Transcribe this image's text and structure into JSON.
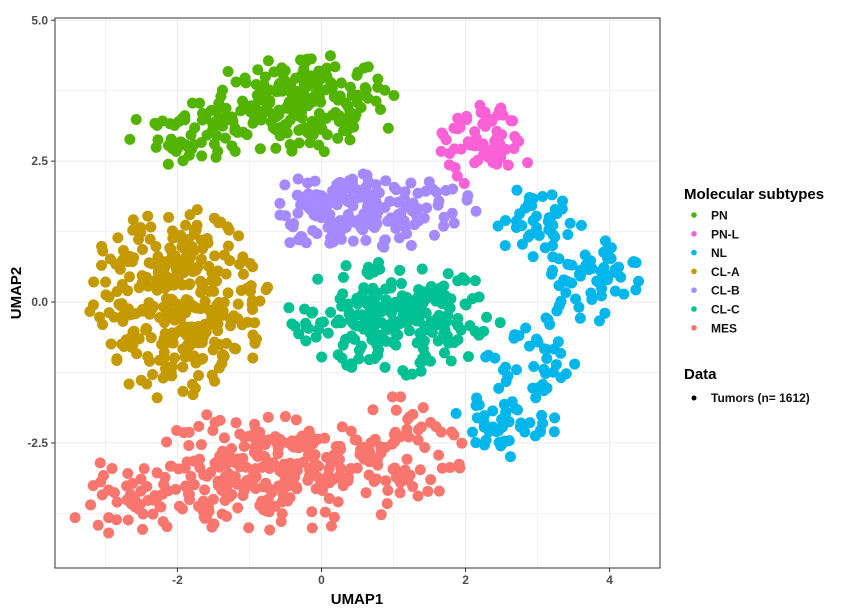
{
  "chart_data": {
    "type": "scatter",
    "title": "",
    "xlabel": "UMAP1",
    "ylabel": "UMAP2",
    "xlim": [
      -3.7,
      4.7
    ],
    "ylim": [
      -4.72,
      5.04
    ],
    "xticks": [
      -2,
      0,
      2,
      4
    ],
    "xtick_labels": [
      "-2",
      "0",
      "2",
      "4"
    ],
    "yticks": [
      -2.5,
      0,
      2.5,
      5
    ],
    "ytick_labels": [
      "-2.5",
      "0.0",
      "2.5",
      "5.0"
    ],
    "grid": true,
    "legend_position": "right",
    "legend_title": "Molecular subtypes",
    "total_points": 1612,
    "series": [
      {
        "name": "PN",
        "color": "#53B400",
        "count": 260,
        "clusters": [
          {
            "cx": -0.3,
            "cy": 3.5,
            "sx": 0.65,
            "sy": 0.45,
            "w": 0.8
          },
          {
            "cx": -1.9,
            "cy": 3.0,
            "sx": 0.45,
            "sy": 0.3,
            "w": 0.2
          }
        ]
      },
      {
        "name": "PN-L",
        "color": "#FB61D7",
        "count": 70,
        "clusters": [
          {
            "cx": 2.2,
            "cy": 2.85,
            "sx": 0.35,
            "sy": 0.4,
            "w": 1
          }
        ]
      },
      {
        "name": "NL",
        "color": "#00B6EB",
        "count": 180,
        "clusters": [
          {
            "cx": 3.8,
            "cy": 0.4,
            "sx": 0.35,
            "sy": 0.35,
            "w": 0.35
          },
          {
            "cx": 3.0,
            "cy": 1.4,
            "sx": 0.3,
            "sy": 0.35,
            "w": 0.2
          },
          {
            "cx": 3.0,
            "cy": -1.0,
            "sx": 0.4,
            "sy": 0.45,
            "w": 0.25
          },
          {
            "cx": 2.6,
            "cy": -2.2,
            "sx": 0.4,
            "sy": 0.3,
            "w": 0.2
          }
        ]
      },
      {
        "name": "CL-A",
        "color": "#C49A00",
        "count": 330,
        "clusters": [
          {
            "cx": -2.0,
            "cy": 0.0,
            "sx": 0.6,
            "sy": 0.85,
            "w": 1
          }
        ]
      },
      {
        "name": "CL-B",
        "color": "#A58AFF",
        "count": 180,
        "clusters": [
          {
            "cx": 0.6,
            "cy": 1.6,
            "sx": 0.75,
            "sy": 0.35,
            "w": 1
          }
        ]
      },
      {
        "name": "CL-C",
        "color": "#00C094",
        "count": 230,
        "clusters": [
          {
            "cx": 1.0,
            "cy": -0.3,
            "sx": 0.7,
            "sy": 0.5,
            "w": 1
          }
        ]
      },
      {
        "name": "MES",
        "color": "#F8766D",
        "count": 362,
        "clusters": [
          {
            "cx": -0.6,
            "cy": -3.0,
            "sx": 0.95,
            "sy": 0.55,
            "w": 0.75
          },
          {
            "cx": -2.6,
            "cy": -3.5,
            "sx": 0.45,
            "sy": 0.35,
            "w": 0.15
          },
          {
            "cx": 1.3,
            "cy": -2.5,
            "sx": 0.45,
            "sy": 0.45,
            "w": 0.1
          }
        ]
      }
    ],
    "data_legend": {
      "title": "Data",
      "label": "Tumors (n= 1612)",
      "color": "#000000"
    }
  }
}
